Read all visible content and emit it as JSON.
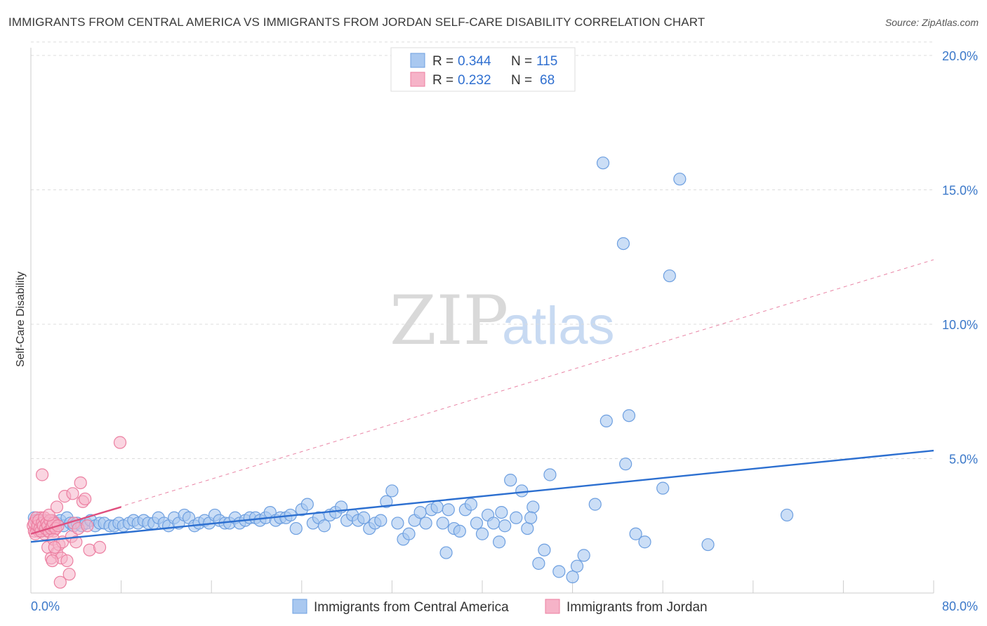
{
  "header": {
    "title": "IMMIGRANTS FROM CENTRAL AMERICA VS IMMIGRANTS FROM JORDAN SELF-CARE DISABILITY CORRELATION CHART",
    "source": "Source: ZipAtlas.com"
  },
  "legend": {
    "series1": {
      "r_label": "R =",
      "r_value": "0.344",
      "n_label": "N =",
      "n_value": "115"
    },
    "series2": {
      "r_label": "R =",
      "r_value": "0.232",
      "n_label": "N =",
      "n_value": "68"
    }
  },
  "watermark": {
    "part1": "ZIP",
    "part2": "atlas"
  },
  "colors": {
    "blue_fill": "#a9c8f0",
    "blue_stroke": "#6d9fe0",
    "blue_line": "#2c6fd0",
    "pink_fill": "#f6b3c8",
    "pink_stroke": "#ec7fa1",
    "pink_line": "#e0507f",
    "grid": "#dcdcdc",
    "tick_text": "#3b78c9"
  },
  "chart_data": {
    "type": "scatter",
    "title": "IMMIGRANTS FROM CENTRAL AMERICA VS IMMIGRANTS FROM JORDAN SELF-CARE DISABILITY CORRELATION CHART",
    "xlabel": "",
    "ylabel": "Self-Care Disability",
    "xlim": [
      0,
      80
    ],
    "ylim": [
      0,
      20.5
    ],
    "x_tick_labels": [
      "0.0%",
      "80.0%"
    ],
    "y_ticks": [
      5,
      10,
      15,
      20
    ],
    "y_tick_labels": [
      "5.0%",
      "10.0%",
      "15.0%",
      "20.0%"
    ],
    "grid": true,
    "legend_position": "top-center",
    "series": [
      {
        "name": "Immigrants from Central America",
        "color": "#a9c8f0",
        "trend": {
          "x": [
            0,
            80
          ],
          "y": [
            1.9,
            5.3
          ],
          "style": "solid"
        },
        "points": [
          [
            0.3,
            2.8
          ],
          [
            0.5,
            2.7
          ],
          [
            0.7,
            2.6
          ],
          [
            0.9,
            2.5
          ],
          [
            1.1,
            2.7
          ],
          [
            1.3,
            2.6
          ],
          [
            1.5,
            2.4
          ],
          [
            1.8,
            2.7
          ],
          [
            2.0,
            2.5
          ],
          [
            2.3,
            2.6
          ],
          [
            2.6,
            2.7
          ],
          [
            2.9,
            2.5
          ],
          [
            3.2,
            2.8
          ],
          [
            3.5,
            2.6
          ],
          [
            3.8,
            2.5
          ],
          [
            4.1,
            2.6
          ],
          [
            4.5,
            2.5
          ],
          [
            4.9,
            2.6
          ],
          [
            5.3,
            2.7
          ],
          [
            5.7,
            2.5
          ],
          [
            6.1,
            2.6
          ],
          [
            6.5,
            2.6
          ],
          [
            7.0,
            2.5
          ],
          [
            7.4,
            2.5
          ],
          [
            7.8,
            2.6
          ],
          [
            8.2,
            2.5
          ],
          [
            8.7,
            2.6
          ],
          [
            9.1,
            2.7
          ],
          [
            9.5,
            2.6
          ],
          [
            10.0,
            2.7
          ],
          [
            10.4,
            2.6
          ],
          [
            10.9,
            2.6
          ],
          [
            11.3,
            2.8
          ],
          [
            11.8,
            2.6
          ],
          [
            12.2,
            2.5
          ],
          [
            12.7,
            2.8
          ],
          [
            13.1,
            2.6
          ],
          [
            13.6,
            2.9
          ],
          [
            14.0,
            2.8
          ],
          [
            14.5,
            2.5
          ],
          [
            14.9,
            2.6
          ],
          [
            15.4,
            2.7
          ],
          [
            15.8,
            2.6
          ],
          [
            16.3,
            2.9
          ],
          [
            16.7,
            2.7
          ],
          [
            17.2,
            2.6
          ],
          [
            17.6,
            2.6
          ],
          [
            18.1,
            2.8
          ],
          [
            18.5,
            2.6
          ],
          [
            19.0,
            2.7
          ],
          [
            19.4,
            2.8
          ],
          [
            19.9,
            2.8
          ],
          [
            20.3,
            2.7
          ],
          [
            20.8,
            2.8
          ],
          [
            21.2,
            3.0
          ],
          [
            21.7,
            2.7
          ],
          [
            22.1,
            2.8
          ],
          [
            22.6,
            2.8
          ],
          [
            23.0,
            2.9
          ],
          [
            23.5,
            2.4
          ],
          [
            24.0,
            3.1
          ],
          [
            24.5,
            3.3
          ],
          [
            25.0,
            2.6
          ],
          [
            25.5,
            2.8
          ],
          [
            26.0,
            2.5
          ],
          [
            26.5,
            2.9
          ],
          [
            27.0,
            3.0
          ],
          [
            27.5,
            3.2
          ],
          [
            28.0,
            2.7
          ],
          [
            28.5,
            2.9
          ],
          [
            29.0,
            2.7
          ],
          [
            29.5,
            2.8
          ],
          [
            30.0,
            2.4
          ],
          [
            30.5,
            2.6
          ],
          [
            31.0,
            2.7
          ],
          [
            31.5,
            3.4
          ],
          [
            32.0,
            3.8
          ],
          [
            32.5,
            2.6
          ],
          [
            33.0,
            2.0
          ],
          [
            33.5,
            2.2
          ],
          [
            34.0,
            2.7
          ],
          [
            34.5,
            3.0
          ],
          [
            35.0,
            2.6
          ],
          [
            35.5,
            3.1
          ],
          [
            36.0,
            3.2
          ],
          [
            36.5,
            2.6
          ],
          [
            37.0,
            3.1
          ],
          [
            37.5,
            2.4
          ],
          [
            38.0,
            2.3
          ],
          [
            38.5,
            3.1
          ],
          [
            39.0,
            3.3
          ],
          [
            39.5,
            2.6
          ],
          [
            40.0,
            2.2
          ],
          [
            40.5,
            2.9
          ],
          [
            41.0,
            2.6
          ],
          [
            41.5,
            1.9
          ],
          [
            42.0,
            2.5
          ],
          [
            42.5,
            4.2
          ],
          [
            43.0,
            2.8
          ],
          [
            43.5,
            3.8
          ],
          [
            44.0,
            2.4
          ],
          [
            44.5,
            3.2
          ],
          [
            45.0,
            1.1
          ],
          [
            45.5,
            1.6
          ],
          [
            46.0,
            4.4
          ],
          [
            48.0,
            0.6
          ],
          [
            49.0,
            1.4
          ],
          [
            50.0,
            3.3
          ],
          [
            51.0,
            6.4
          ],
          [
            53.0,
            6.6
          ],
          [
            56.0,
            3.9
          ],
          [
            60.0,
            1.8
          ],
          [
            67.0,
            2.9
          ],
          [
            52.5,
            13.0
          ],
          [
            50.7,
            16.0
          ],
          [
            56.6,
            11.8
          ],
          [
            57.5,
            15.4
          ],
          [
            52.7,
            4.8
          ],
          [
            54.4,
            1.9
          ],
          [
            46.8,
            0.8
          ],
          [
            48.4,
            1.0
          ],
          [
            53.6,
            2.2
          ],
          [
            36.8,
            1.5
          ],
          [
            44.3,
            2.8
          ],
          [
            41.7,
            3.0
          ]
        ]
      },
      {
        "name": "Immigrants from Jordan",
        "color": "#f6b3c8",
        "trend_solid": {
          "x": [
            0,
            8
          ],
          "y": [
            2.2,
            3.2
          ],
          "style": "solid"
        },
        "trend_extended": {
          "x": [
            0,
            80
          ],
          "y": [
            2.2,
            12.4
          ],
          "style": "dashed"
        },
        "points": [
          [
            0.2,
            2.5
          ],
          [
            0.3,
            2.3
          ],
          [
            0.4,
            2.7
          ],
          [
            0.5,
            2.4
          ],
          [
            0.6,
            2.6
          ],
          [
            0.7,
            2.3
          ],
          [
            0.8,
            2.5
          ],
          [
            0.9,
            2.8
          ],
          [
            1.0,
            2.4
          ],
          [
            1.1,
            2.6
          ],
          [
            1.2,
            2.2
          ],
          [
            1.3,
            2.5
          ],
          [
            1.4,
            2.7
          ],
          [
            1.5,
            2.3
          ],
          [
            1.6,
            2.6
          ],
          [
            1.7,
            2.4
          ],
          [
            1.8,
            2.5
          ],
          [
            1.9,
            2.7
          ],
          [
            2.0,
            2.3
          ],
          [
            2.1,
            2.6
          ],
          [
            0.3,
            2.6
          ],
          [
            0.4,
            2.2
          ],
          [
            0.5,
            2.8
          ],
          [
            0.6,
            2.5
          ],
          [
            0.7,
            2.7
          ],
          [
            0.8,
            2.4
          ],
          [
            0.9,
            2.3
          ],
          [
            1.0,
            2.6
          ],
          [
            1.1,
            2.5
          ],
          [
            1.2,
            2.8
          ],
          [
            1.3,
            2.4
          ],
          [
            1.4,
            2.6
          ],
          [
            1.5,
            2.5
          ],
          [
            1.6,
            2.3
          ],
          [
            1.7,
            2.7
          ],
          [
            1.8,
            2.4
          ],
          [
            1.9,
            2.5
          ],
          [
            2.0,
            2.6
          ],
          [
            2.2,
            2.4
          ],
          [
            2.4,
            2.5
          ],
          [
            1.0,
            4.4
          ],
          [
            1.5,
            1.7
          ],
          [
            1.8,
            1.3
          ],
          [
            2.0,
            2.0
          ],
          [
            2.3,
            1.5
          ],
          [
            2.5,
            1.8
          ],
          [
            2.7,
            1.3
          ],
          [
            2.8,
            1.9
          ],
          [
            3.0,
            3.6
          ],
          [
            3.2,
            1.2
          ],
          [
            3.4,
            0.7
          ],
          [
            3.6,
            2.1
          ],
          [
            3.8,
            2.6
          ],
          [
            4.0,
            1.9
          ],
          [
            4.2,
            2.4
          ],
          [
            4.4,
            4.1
          ],
          [
            4.6,
            3.4
          ],
          [
            4.8,
            3.5
          ],
          [
            5.0,
            2.5
          ],
          [
            5.2,
            1.6
          ],
          [
            6.1,
            1.7
          ],
          [
            7.9,
            5.6
          ],
          [
            2.1,
            1.7
          ],
          [
            2.6,
            0.4
          ],
          [
            1.6,
            2.9
          ],
          [
            2.3,
            3.2
          ],
          [
            3.7,
            3.7
          ],
          [
            1.9,
            1.2
          ]
        ]
      }
    ]
  },
  "bottom_legend": {
    "item1": "Immigrants from Central America",
    "item2": "Immigrants from Jordan"
  }
}
